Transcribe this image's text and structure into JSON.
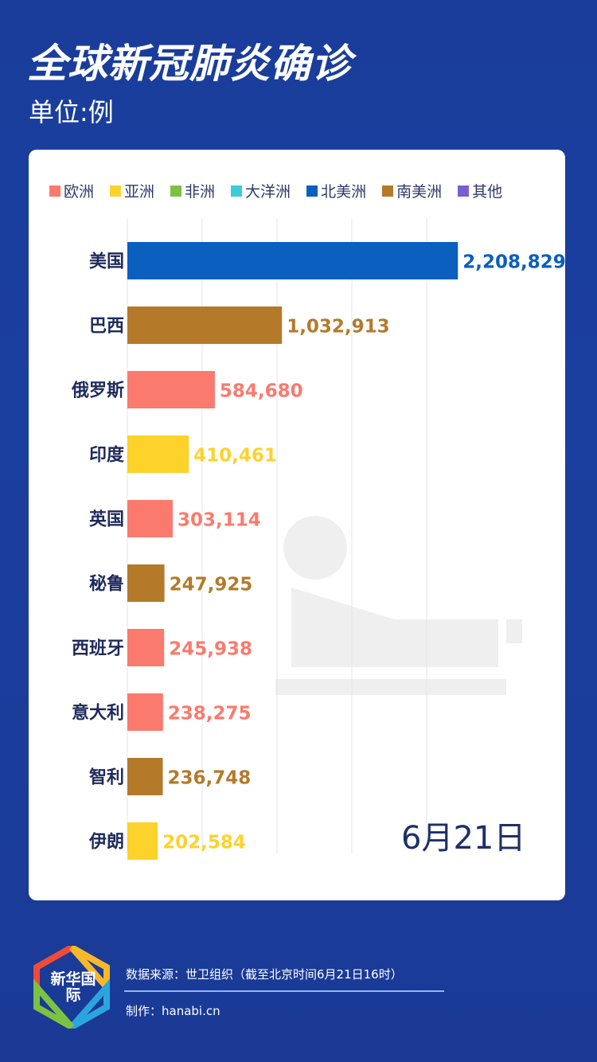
{
  "header": {
    "title": "全球新冠肺炎确诊",
    "unit": "单位:例"
  },
  "chart_data": {
    "type": "bar",
    "orientation": "horizontal",
    "categories": [
      "美国",
      "巴西",
      "俄罗斯",
      "印度",
      "英国",
      "秘鲁",
      "西班牙",
      "意大利",
      "智利",
      "伊朗"
    ],
    "values": [
      2208829,
      1032913,
      584680,
      410461,
      303114,
      247925,
      245938,
      238275,
      236748,
      202584
    ],
    "value_labels": [
      "2,208,829",
      "1,032,913",
      "584,680",
      "410,461",
      "303,114",
      "247,925",
      "245,938",
      "238,275",
      "236,748",
      "202,584"
    ],
    "continents": [
      "北美洲",
      "南美洲",
      "欧洲",
      "亚洲",
      "欧洲",
      "南美洲",
      "欧洲",
      "欧洲",
      "南美洲",
      "亚洲"
    ],
    "legend": [
      {
        "name": "欧洲",
        "color": "#fa7a6e"
      },
      {
        "name": "亚洲",
        "color": "#fdd22a"
      },
      {
        "name": "非洲",
        "color": "#7cc242"
      },
      {
        "name": "大洋洲",
        "color": "#3ccbd8"
      },
      {
        "name": "北美洲",
        "color": "#0a5fbf"
      },
      {
        "name": "南美洲",
        "color": "#b47a2a"
      },
      {
        "name": "其他",
        "color": "#7b5fd1"
      }
    ],
    "legend_position": "top",
    "xlim": [
      0,
      2500000
    ],
    "grid": true
  },
  "date_label": "6月21日",
  "footer": {
    "logo_text": "新华国际",
    "source": "数据来源：世卫组织（截至北京时间6月21日16时）",
    "maker": "制作：hanabi.cn"
  }
}
